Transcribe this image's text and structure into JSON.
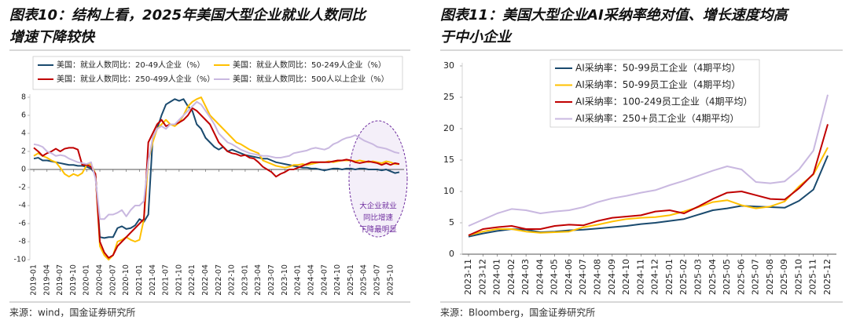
{
  "chart_data": [
    {
      "type": "line",
      "title": [
        "图表10：结构上看，2025年美国大型企业就业人数同比",
        "增速下降较快"
      ],
      "source": "来源：wind，国金证券研究所",
      "annotation": [
        "大企业就业",
        "同比增速",
        "下降最明显"
      ],
      "categories": [
        "2019-01",
        null,
        null,
        "2019-04",
        null,
        null,
        "2019-07",
        null,
        null,
        "2019-10",
        null,
        null,
        "2020-01",
        null,
        null,
        "2020-04",
        null,
        null,
        "2020-07",
        null,
        null,
        "2020-10",
        null,
        null,
        "2021-01",
        null,
        null,
        "2021-04",
        null,
        null,
        "2021-07",
        null,
        null,
        "2021-10",
        null,
        null,
        "2022-01",
        null,
        null,
        "2022-04",
        null,
        null,
        "2022-07",
        null,
        null,
        "2022-10",
        null,
        null,
        "2023-01",
        null,
        null,
        "2023-04",
        null,
        null,
        "2023-07",
        null,
        null,
        "2023-10",
        null,
        null,
        "2024-01",
        null,
        null,
        "2024-04",
        null,
        null,
        "2024-07",
        null,
        null,
        "2024-10",
        null,
        null,
        "2025-01",
        null,
        null,
        "2025-04",
        null,
        null,
        "2025-07",
        null,
        null,
        "2025-10",
        null,
        null
      ],
      "ylim": [
        -10,
        8
      ],
      "yticks": [
        -10,
        -8,
        -6,
        -4,
        -2,
        0,
        2,
        4,
        6,
        8
      ],
      "series": [
        {
          "name": "美国：就业人数同比：20-49人企业（%）",
          "color": "#1a4a6e",
          "values": [
            1.2,
            1.3,
            1.0,
            1.0,
            0.9,
            0.8,
            0.7,
            0.6,
            0.5,
            0.5,
            0.4,
            0.4,
            0.3,
            0.1,
            -0.5,
            -7.5,
            -7.6,
            -7.5,
            -7.5,
            -6.5,
            -6.3,
            -6.6,
            -6.5,
            -6.2,
            -5.5,
            -5.8,
            -5.0,
            3.5,
            4.5,
            6.0,
            7.2,
            7.5,
            7.8,
            7.6,
            7.8,
            7.0,
            6.5,
            5.0,
            4.5,
            3.5,
            3.0,
            2.5,
            2.2,
            2.5,
            2.0,
            2.2,
            2.0,
            1.8,
            1.6,
            1.5,
            1.4,
            1.3,
            1.2,
            1.2,
            1.0,
            0.8,
            0.7,
            0.6,
            0.5,
            0.4,
            0.3,
            0.2,
            0.2,
            0.1,
            0.1,
            0.0,
            -0.1,
            0.0,
            0.1,
            0.1,
            0.0,
            0.1,
            0.1,
            0.0,
            0.1,
            0.1,
            0.0,
            0.0,
            0.0,
            -0.1,
            0.0,
            -0.2,
            -0.4,
            -0.3
          ]
        },
        {
          "name": "美国：就业人数同比：50-249人企业（%）",
          "color": "#ffc000",
          "values": [
            1.5,
            1.8,
            1.5,
            1.3,
            1.0,
            0.8,
            0.2,
            -0.5,
            -0.8,
            -0.5,
            -0.7,
            -0.4,
            0.5,
            0.6,
            -0.5,
            -8.5,
            -9.5,
            -10,
            -9.5,
            -8,
            -7.8,
            -7.5,
            -7.8,
            -8.0,
            -7.8,
            -5.5,
            1.0,
            3.0,
            4.5,
            5.0,
            5.5,
            5.0,
            4.8,
            5.2,
            6.0,
            7.0,
            7.5,
            7.8,
            8.0,
            7.0,
            6.0,
            5.5,
            5.0,
            4.5,
            4.0,
            3.5,
            3.0,
            2.8,
            2.5,
            2.2,
            2.0,
            1.8,
            1.0,
            0.8,
            0.6,
            0.4,
            0.3,
            0.2,
            0.3,
            0.5,
            0.5,
            0.6,
            0.5,
            0.6,
            0.7,
            0.8,
            0.8,
            0.9,
            0.8,
            0.9,
            1.0,
            1.0,
            1.0,
            0.9,
            1.0,
            0.9,
            0.8,
            0.9,
            0.8,
            0.7,
            0.9,
            0.8,
            0.6,
            0.6
          ]
        },
        {
          "name": "美国：就业人数同比：250-499人企业（%）",
          "color": "#c00000",
          "values": [
            2.4,
            2.0,
            1.5,
            1.8,
            2.0,
            2.3,
            2.0,
            2.3,
            2.4,
            2.4,
            2.2,
            0.5,
            0.5,
            0.3,
            -0.5,
            -8,
            -9.2,
            -9.8,
            -9.5,
            -8.5,
            -8.0,
            -7.5,
            -7.0,
            -6.5,
            -6.0,
            -5.5,
            3.0,
            4.0,
            5.0,
            5.5,
            4.8,
            5.0,
            5.0,
            5.2,
            5.5,
            6.0,
            6.8,
            6.5,
            6.0,
            5.5,
            5.0,
            4.0,
            3.0,
            2.5,
            2.0,
            1.8,
            1.7,
            1.5,
            1.6,
            1.3,
            1.2,
            0.8,
            0.3,
            0.0,
            -0.3,
            -0.8,
            -0.5,
            -0.3,
            0.0,
            0.0,
            0.2,
            0.4,
            0.6,
            0.8,
            0.8,
            0.8,
            0.8,
            0.8,
            0.9,
            1.0,
            1.0,
            1.1,
            1.0,
            0.8,
            0.7,
            0.8,
            0.9,
            0.8,
            0.7,
            0.5,
            0.7,
            0.5,
            0.7,
            0.6
          ]
        },
        {
          "name": "美国：就业人数同比：500人以上企业（%）",
          "color": "#c9b8e0",
          "values": [
            2.8,
            2.7,
            2.5,
            2.0,
            1.8,
            1.5,
            1.6,
            1.5,
            1.2,
            1.0,
            0.8,
            0.7,
            0.6,
            0.8,
            -1.0,
            -5.5,
            -5.5,
            -5.0,
            -5.0,
            -4.8,
            -4.5,
            -5.2,
            -4.5,
            -4.0,
            -4.0,
            -3.5,
            1.0,
            3.5,
            4.5,
            4.8,
            4.5,
            5.0,
            5.0,
            5.5,
            6.0,
            6.5,
            7.0,
            7.5,
            7.2,
            6.5,
            5.8,
            5.0,
            4.0,
            3.5,
            3.0,
            2.8,
            2.5,
            2.2,
            2.0,
            1.8,
            1.7,
            1.6,
            1.5,
            1.5,
            1.4,
            1.3,
            1.3,
            1.4,
            1.5,
            1.8,
            1.9,
            2.0,
            2.1,
            2.3,
            2.4,
            2.3,
            2.2,
            2.4,
            2.8,
            3.0,
            3.3,
            3.5,
            3.6,
            3.8,
            3.5,
            3.2,
            3.0,
            2.8,
            2.5,
            2.4,
            2.3,
            2.1,
            1.9,
            1.8
          ]
        }
      ]
    },
    {
      "type": "line",
      "title": [
        "图表11：美国大型企业AI采纳率绝对值、增长速度均高",
        "于中小企业"
      ],
      "source": "来源：Bloomberg，国金证券研究所",
      "categories": [
        "2023-11",
        "2023-12",
        "2024-01",
        "2024-02",
        "2024-03",
        "2024-04",
        "2024-05",
        "2024-06",
        "2024-07",
        "2024-08",
        "2024-09",
        "2024-10",
        "2024-11",
        "2024-12",
        "2025-01",
        "2025-02",
        "2025-03",
        "2025-04",
        "2025-05",
        "2025-06",
        "2025-07",
        "2025-08",
        "2025-09",
        "2025-10",
        "2025-11",
        "2025-12"
      ],
      "ylim": [
        0,
        30
      ],
      "yticks": [
        0,
        5,
        10,
        15,
        20,
        25,
        30
      ],
      "series": [
        {
          "name": "AI采纳率：50-99员工企业（4期平均）",
          "color": "#1a4a6e",
          "values": [
            2.8,
            3.3,
            3.7,
            4.0,
            3.9,
            3.5,
            3.6,
            3.8,
            3.9,
            4.1,
            4.3,
            4.5,
            4.8,
            5.0,
            5.3,
            5.6,
            6.3,
            7.0,
            7.3,
            7.7,
            7.6,
            7.5,
            7.4,
            8.5,
            10.3,
            15.7
          ]
        },
        {
          "name": "AI采纳率：50-99员工企业（4期平均）",
          "color": "#ffc000",
          "values": [
            3.0,
            3.6,
            4.0,
            4.0,
            3.6,
            3.4,
            3.5,
            3.6,
            4.3,
            4.7,
            5.2,
            5.6,
            5.8,
            5.9,
            6.2,
            6.8,
            7.5,
            8.3,
            8.6,
            7.8,
            7.3,
            7.6,
            8.4,
            10.8,
            12.7,
            17.0
          ]
        },
        {
          "name": "AI采纳率：100-249员工企业（4期平均）",
          "color": "#c00000",
          "values": [
            3.0,
            4.0,
            4.3,
            4.5,
            4.0,
            4.0,
            4.5,
            4.7,
            4.6,
            5.3,
            5.8,
            6.0,
            6.2,
            6.8,
            7.0,
            6.5,
            7.6,
            8.8,
            9.8,
            10.0,
            9.4,
            8.8,
            8.7,
            10.5,
            12.8,
            20.7
          ]
        },
        {
          "name": "AI采纳率：250+员工企业（4期平均）",
          "color": "#c9b8e0",
          "values": [
            4.5,
            5.5,
            6.5,
            7.2,
            7.0,
            6.5,
            6.8,
            7.0,
            7.5,
            8.3,
            8.9,
            9.3,
            9.8,
            10.2,
            11.0,
            11.7,
            12.5,
            13.3,
            14.0,
            13.5,
            11.5,
            11.3,
            11.6,
            13.5,
            16.5,
            25.4
          ]
        }
      ]
    }
  ]
}
